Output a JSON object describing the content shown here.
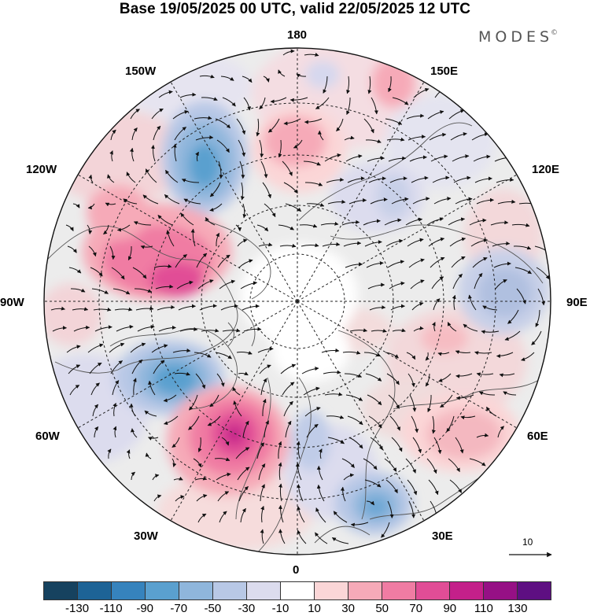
{
  "title": "Base 19/05/2025 00 UTC, valid 22/05/2025 12 UTC",
  "brand": {
    "name": "MODES",
    "mark": "©"
  },
  "longitude_labels": {
    "top": "180",
    "top_left": "150W",
    "top_right": "150E",
    "upper_left": "120W",
    "upper_right": "120E",
    "left": "90W",
    "right": "90E",
    "lower_left": "60W",
    "lower_right": "60E",
    "bottom_left": "30W",
    "bottom_right": "30E",
    "bottom": "0"
  },
  "reference_vector": {
    "label": "10"
  },
  "colorbar": {
    "colors": [
      "#16425f",
      "#1d6396",
      "#3683bd",
      "#5aa0cf",
      "#8fb6dc",
      "#b8c8e6",
      "#dcdcee",
      "#ffffff",
      "#fbd6d7",
      "#f6aab8",
      "#f07ca3",
      "#e14d96",
      "#c4208a",
      "#961085",
      "#5e0f82"
    ],
    "ticks": [
      "-130",
      "-110",
      "-90",
      "-70",
      "-50",
      "-30",
      "-10",
      "10",
      "30",
      "50",
      "70",
      "90",
      "110",
      "130"
    ]
  }
}
